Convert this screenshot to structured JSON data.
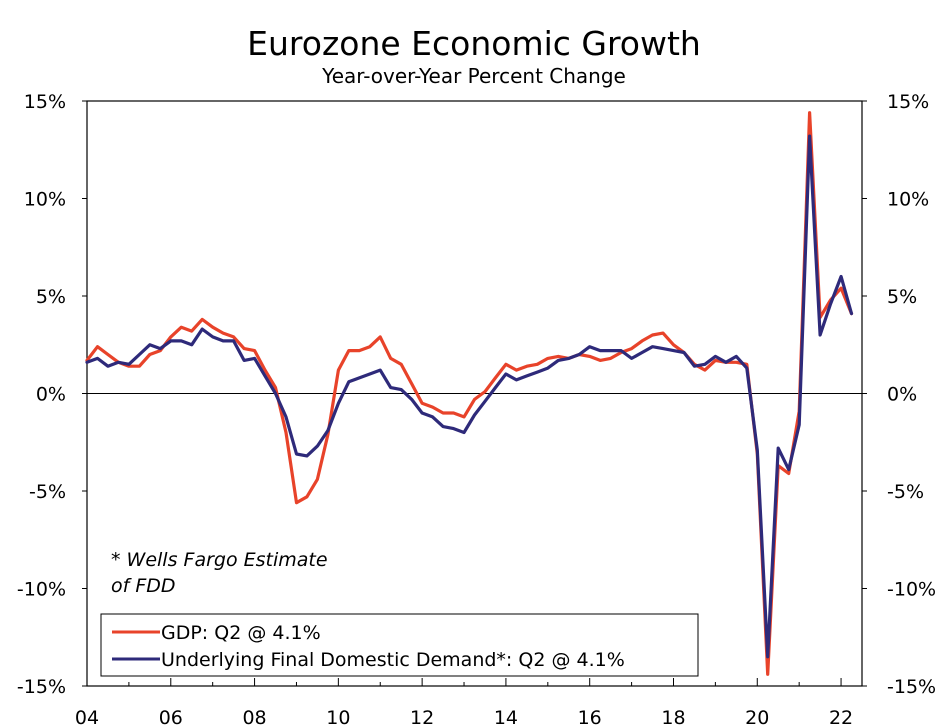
{
  "chart_data": {
    "type": "line",
    "title": "Eurozone Economic Growth",
    "subtitle": "Year-over-Year Percent Change",
    "ylim": [
      -15,
      15
    ],
    "xlim": [
      2004.0,
      2022.5
    ],
    "y_ticks": [
      15,
      10,
      5,
      0,
      -5,
      -10,
      -15
    ],
    "y_tick_labels": [
      "15%",
      "10%",
      "5%",
      "0%",
      "-5%",
      "-10%",
      "-15%"
    ],
    "x_ticks": [
      2004,
      2006,
      2008,
      2010,
      2012,
      2014,
      2016,
      2018,
      2020,
      2022
    ],
    "x_tick_labels": [
      "04",
      "06",
      "08",
      "10",
      "12",
      "14",
      "16",
      "18",
      "20",
      "22"
    ],
    "annotation": [
      "* Wells Fargo Estimate",
      "of FDD"
    ],
    "series": [
      {
        "name": "GDP: Q2 @ 4.1%",
        "color": "#e8432a",
        "x": [
          2004.0,
          2004.25,
          2004.5,
          2004.75,
          2005.0,
          2005.25,
          2005.5,
          2005.75,
          2006.0,
          2006.25,
          2006.5,
          2006.75,
          2007.0,
          2007.25,
          2007.5,
          2007.75,
          2008.0,
          2008.25,
          2008.5,
          2008.75,
          2009.0,
          2009.25,
          2009.5,
          2009.75,
          2010.0,
          2010.25,
          2010.5,
          2010.75,
          2011.0,
          2011.25,
          2011.5,
          2011.75,
          2012.0,
          2012.25,
          2012.5,
          2012.75,
          2013.0,
          2013.25,
          2013.5,
          2013.75,
          2014.0,
          2014.25,
          2014.5,
          2014.75,
          2015.0,
          2015.25,
          2015.5,
          2015.75,
          2016.0,
          2016.25,
          2016.5,
          2016.75,
          2017.0,
          2017.25,
          2017.5,
          2017.75,
          2018.0,
          2018.25,
          2018.5,
          2018.75,
          2019.0,
          2019.25,
          2019.5,
          2019.75,
          2020.0,
          2020.25,
          2020.5,
          2020.75,
          2021.0,
          2021.25,
          2021.5,
          2021.75,
          2022.0,
          2022.25
        ],
        "values": [
          1.7,
          2.4,
          2.0,
          1.6,
          1.4,
          1.4,
          2.0,
          2.2,
          2.9,
          3.4,
          3.2,
          3.8,
          3.4,
          3.1,
          2.9,
          2.3,
          2.2,
          1.2,
          0.3,
          -2.0,
          -5.6,
          -5.3,
          -4.4,
          -2.1,
          1.2,
          2.2,
          2.2,
          2.4,
          2.9,
          1.8,
          1.5,
          0.5,
          -0.5,
          -0.7,
          -1.0,
          -1.0,
          -1.2,
          -0.3,
          0.1,
          0.8,
          1.5,
          1.2,
          1.4,
          1.5,
          1.8,
          1.9,
          1.8,
          2.0,
          1.9,
          1.7,
          1.8,
          2.1,
          2.3,
          2.7,
          3.0,
          3.1,
          2.5,
          2.1,
          1.5,
          1.2,
          1.7,
          1.6,
          1.6,
          1.5,
          -3.1,
          -14.4,
          -3.7,
          -4.1,
          -0.9,
          14.4,
          3.9,
          4.8,
          5.4,
          4.1
        ]
      },
      {
        "name": "Underlying Final Domestic Demand*: Q2 @ 4.1%",
        "color": "#2e2a7a",
        "x": [
          2004.0,
          2004.25,
          2004.5,
          2004.75,
          2005.0,
          2005.25,
          2005.5,
          2005.75,
          2006.0,
          2006.25,
          2006.5,
          2006.75,
          2007.0,
          2007.25,
          2007.5,
          2007.75,
          2008.0,
          2008.25,
          2008.5,
          2008.75,
          2009.0,
          2009.25,
          2009.5,
          2009.75,
          2010.0,
          2010.25,
          2010.5,
          2010.75,
          2011.0,
          2011.25,
          2011.5,
          2011.75,
          2012.0,
          2012.25,
          2012.5,
          2012.75,
          2013.0,
          2013.25,
          2013.5,
          2013.75,
          2014.0,
          2014.25,
          2014.5,
          2014.75,
          2015.0,
          2015.25,
          2015.5,
          2015.75,
          2016.0,
          2016.25,
          2016.5,
          2016.75,
          2017.0,
          2017.25,
          2017.5,
          2017.75,
          2018.0,
          2018.25,
          2018.5,
          2018.75,
          2019.0,
          2019.25,
          2019.5,
          2019.75,
          2020.0,
          2020.25,
          2020.5,
          2020.75,
          2021.0,
          2021.25,
          2021.5,
          2021.75,
          2022.0,
          2022.25
        ],
        "values": [
          1.6,
          1.8,
          1.4,
          1.6,
          1.5,
          2.0,
          2.5,
          2.3,
          2.7,
          2.7,
          2.5,
          3.3,
          2.9,
          2.7,
          2.7,
          1.7,
          1.8,
          0.9,
          0.0,
          -1.2,
          -3.1,
          -3.2,
          -2.7,
          -1.9,
          -0.5,
          0.6,
          0.8,
          1.0,
          1.2,
          0.3,
          0.2,
          -0.3,
          -1.0,
          -1.2,
          -1.7,
          -1.8,
          -2.0,
          -1.1,
          -0.4,
          0.3,
          1.0,
          0.7,
          0.9,
          1.1,
          1.3,
          1.7,
          1.8,
          2.0,
          2.4,
          2.2,
          2.2,
          2.2,
          1.8,
          2.1,
          2.4,
          2.3,
          2.2,
          2.1,
          1.4,
          1.5,
          1.9,
          1.6,
          1.9,
          1.3,
          -2.9,
          -13.5,
          -2.8,
          -3.9,
          -1.6,
          13.2,
          3.0,
          4.6,
          6.0,
          4.1
        ]
      }
    ]
  }
}
